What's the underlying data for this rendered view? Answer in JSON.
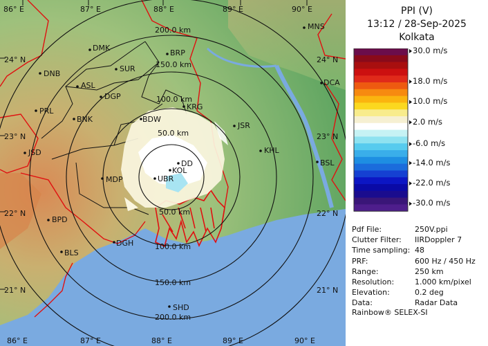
{
  "header": {
    "product": "PPI (V)",
    "datetime": "13:12 / 28-Sep-2025",
    "station": "Kolkata"
  },
  "legend": {
    "colors": [
      "#6b0d4b",
      "#8a0a1a",
      "#a80f0f",
      "#cc1010",
      "#e02a1a",
      "#ee5a10",
      "#f78a10",
      "#fbb40f",
      "#fbd81f",
      "#f8ec8c",
      "#f6f0d2",
      "#ffffff",
      "#c6f2f4",
      "#8ee2f0",
      "#56cbee",
      "#3aaeea",
      "#1e8ee2",
      "#1b6cdc",
      "#1540d2",
      "#0c16c4",
      "#0a0aa6",
      "#1a0c8e",
      "#3a1678",
      "#4e1e8c"
    ],
    "labels": [
      {
        "text": "30.0 m/s",
        "row": 0.5
      },
      {
        "text": "18.0 m/s",
        "row": 5
      },
      {
        "text": "10.0 m/s",
        "row": 8
      },
      {
        "text": "2.0 m/s",
        "row": 11
      },
      {
        "text": "-6.0 m/s",
        "row": 14.2
      },
      {
        "text": "-14.0 m/s",
        "row": 17
      },
      {
        "text": "-22.0 m/s",
        "row": 20
      },
      {
        "text": "-30.0 m/s",
        "row": 23
      }
    ]
  },
  "info": [
    {
      "key": "Pdf File:",
      "value": "250V.ppi"
    },
    {
      "key": "Clutter Filter:",
      "value": "IIRDoppler 7"
    },
    {
      "key": "Time sampling:",
      "value": "48"
    },
    {
      "key": "PRF:",
      "value": "600 Hz / 450 Hz"
    },
    {
      "key": "Range:",
      "value": "250 km"
    },
    {
      "key": "Resolution:",
      "value": "1.000 km/pixel"
    },
    {
      "key": "Elevation:",
      "value": "0.2 deg"
    },
    {
      "key": "Data:",
      "value": "Radar Data"
    }
  ],
  "footer": "Rainbow® SELEX-SI",
  "map": {
    "lon_top": [
      "86° E",
      "87° E",
      "88° E",
      "89° E",
      "90° E"
    ],
    "lon_bottom": [
      "86° E",
      "87° E",
      "88° E",
      "89° E",
      "90° E"
    ],
    "lat_left": [
      "24° N",
      "23° N",
      "22° N",
      "21° N"
    ],
    "lat_right": [
      "24° N",
      "23° N",
      "22° N",
      "21° N"
    ],
    "range_rings_top": [
      "200.0 km",
      "150.0 km",
      "100.0 km",
      "50.0 km"
    ],
    "range_rings_bottom": [
      "50.0 km",
      "100.0 km",
      "150.0 km",
      "200.0 km"
    ],
    "cities": [
      "DMK",
      "BRP",
      "SUR",
      "MNS",
      "DNB",
      "ASL",
      "DGP",
      "DCA",
      "KRG",
      "BDW",
      "JSR",
      "PRL",
      "BNK",
      "KHL",
      "JSD",
      "DD",
      "KOL",
      "MDP",
      "UBR",
      "BSL",
      "BPD",
      "DGH",
      "BLS",
      "SHD"
    ]
  }
}
